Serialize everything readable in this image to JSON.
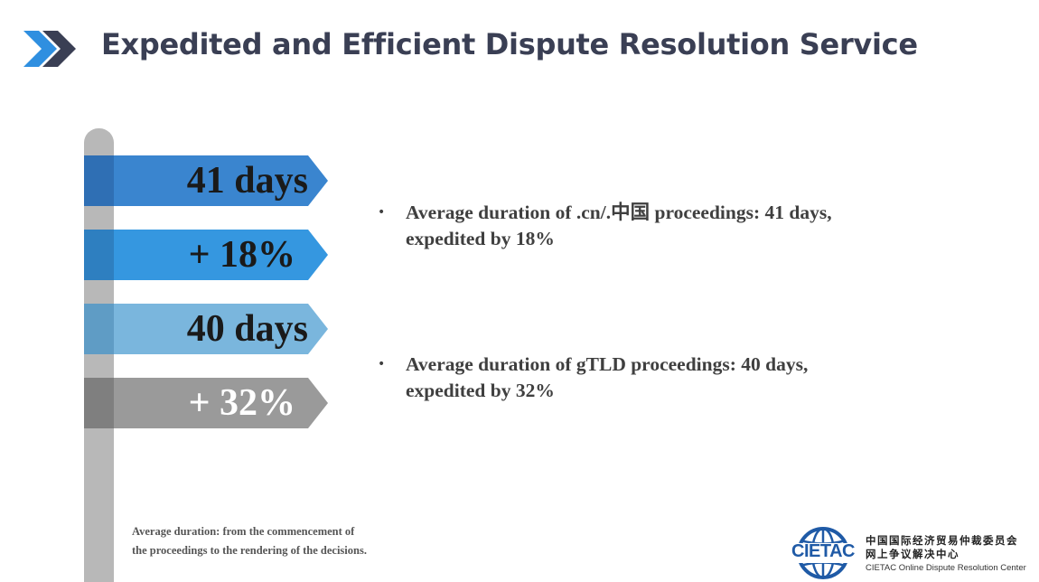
{
  "title": "Expedited and Efficient Dispute Resolution Service",
  "colors": {
    "title_text": "#3a3f54",
    "chevron_light": "#2f8fe0",
    "chevron_dark": "#3a3f54",
    "post": "#b8b8b8"
  },
  "signs": [
    {
      "label": "41 days",
      "color": "#3a85cf",
      "stub_color": "#2f6fb4"
    },
    {
      "label": "+ 18%",
      "color": "#3597e0",
      "stub_color": "#2e7fc0"
    },
    {
      "label": "40 days",
      "color": "#7ab6dd",
      "stub_color": "#5f9cc5"
    },
    {
      "label": "+ 32%",
      "color": "#9a9a9a",
      "stub_color": "#7f7f7f"
    }
  ],
  "bullets": [
    {
      "line1": "Average duration of .cn/.中国 proceedings: 41 days,",
      "line2": "expedited by 18%"
    },
    {
      "line1": "Average duration of gTLD proceedings: 40 days,",
      "line2": "expedited by 32%"
    }
  ],
  "bullet_marker": "•",
  "footnote": {
    "line1": "Average duration: from the commencement of",
    "line2": "the proceedings to the rendering of the decisions."
  },
  "logo": {
    "wordmark": "CIETAC",
    "name_zh_line1": "中国国际经济贸易仲裁委员会",
    "name_zh_line2": "网上争议解决中心",
    "name_en": "CIETAC Online Dispute Resolution Center",
    "color": "#1f5aa6"
  }
}
